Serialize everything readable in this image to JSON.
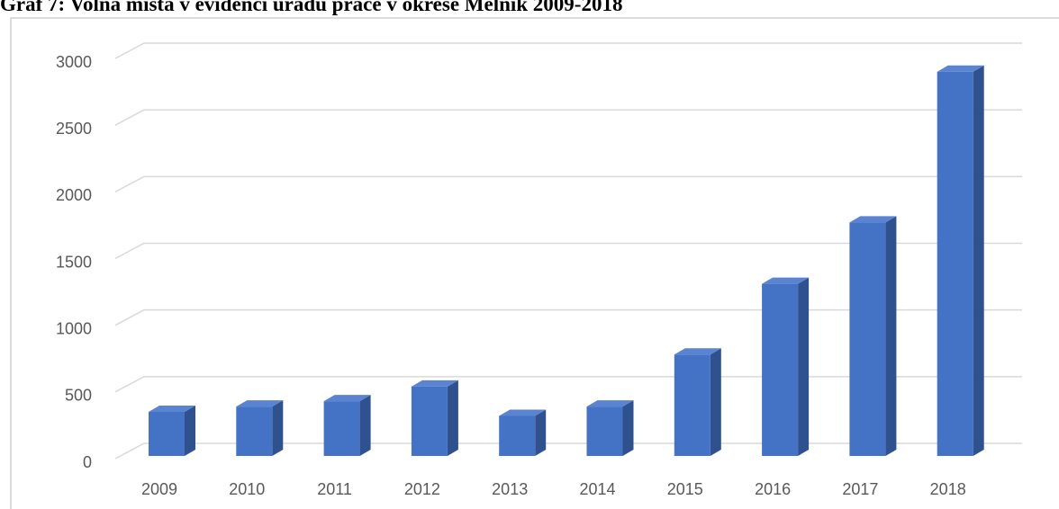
{
  "chart_data": {
    "type": "bar",
    "title": "Graf 7: Volná místa v evidenci úřadu práce v okrese Mělník 2009-2018",
    "categories": [
      "2009",
      "2010",
      "2011",
      "2012",
      "2013",
      "2014",
      "2015",
      "2016",
      "2017",
      "2018"
    ],
    "values": [
      330,
      370,
      410,
      520,
      300,
      370,
      760,
      1290,
      1750,
      2880
    ],
    "color": "#4472c4",
    "ylim": [
      0,
      3000
    ],
    "yticks": [
      0,
      500,
      1000,
      1500,
      2000,
      2500,
      3000
    ],
    "grid": true
  }
}
